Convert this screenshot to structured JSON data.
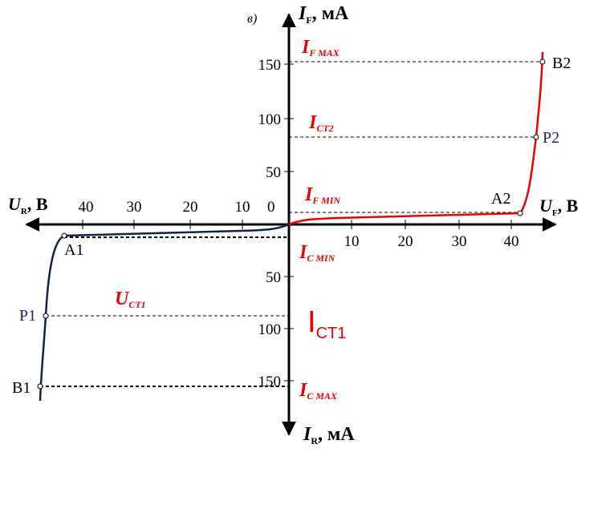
{
  "figure_label": "в)",
  "axes": {
    "up": {
      "main": "I",
      "sub": "F",
      "unit": ", мА"
    },
    "down": {
      "main": "I",
      "sub": "R",
      "unit": ", мА"
    },
    "left": {
      "main": "U",
      "sub": "R",
      "unit": ", В"
    },
    "right": {
      "main": "U",
      "sub": "F",
      "unit": ", В"
    },
    "origin": "0",
    "up_ticks": [
      "50",
      "100",
      "150"
    ],
    "down_ticks": [
      "50",
      "100",
      "150"
    ],
    "left_ticks": [
      "10",
      "20",
      "30",
      "40"
    ],
    "right_ticks": [
      "10",
      "20",
      "30",
      "40"
    ]
  },
  "levels": {
    "if_max": {
      "main": "I",
      "sub": "F MAX"
    },
    "ict2": {
      "main": "I",
      "sub": "CT2"
    },
    "if_min": {
      "main": "I",
      "sub": "F MIN"
    },
    "ic_min": {
      "main": "I",
      "sub": "C MIN"
    },
    "uct1": {
      "main": "U",
      "sub": "CT1"
    },
    "ict1": {
      "main": "I",
      "sub": "CT1"
    },
    "ic_max": {
      "main": "I",
      "sub": "C MAX"
    }
  },
  "points": {
    "a1": "A1",
    "p1": "P1",
    "b1": "B1",
    "a2": "A2",
    "p2": "P2",
    "b2": "B2"
  }
}
